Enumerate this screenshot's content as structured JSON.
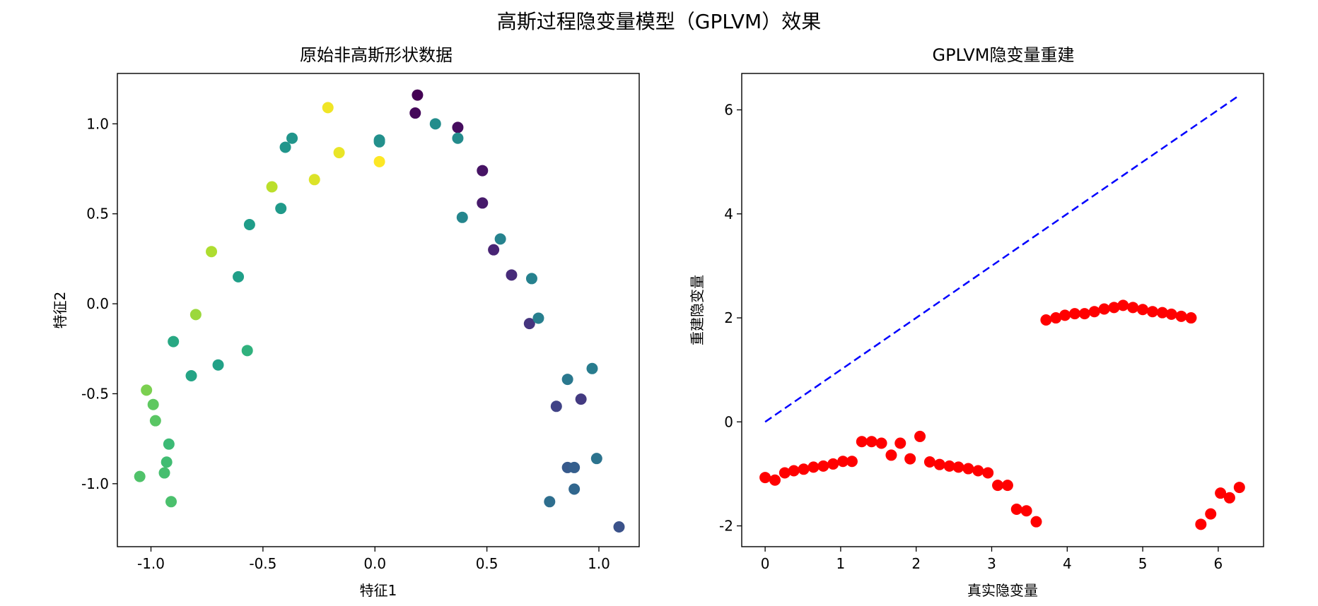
{
  "figure": {
    "suptitle": "高斯过程隐变量模型（GPLVM）效果"
  },
  "chart_data": [
    {
      "type": "scatter",
      "title": "原始非高斯形状数据",
      "xlabel": "特征1",
      "ylabel": "特征2",
      "xlim": [
        -1.15,
        1.18
      ],
      "ylim": [
        -1.35,
        1.28
      ],
      "xticks": [
        -1.0,
        -0.5,
        0.0,
        0.5,
        1.0
      ],
      "xtick_labels": [
        "-1.0",
        "-0.5",
        "0.0",
        "0.5",
        "1.0"
      ],
      "yticks": [
        -1.0,
        -0.5,
        0.0,
        0.5,
        1.0
      ],
      "ytick_labels": [
        "-1.0",
        "-0.5",
        "0.0",
        "0.5",
        "1.0"
      ],
      "colormap": "viridis",
      "points": [
        {
          "x": 0.19,
          "y": 1.16,
          "c": 0.0
        },
        {
          "x": 0.18,
          "y": 1.06,
          "c": 0.02
        },
        {
          "x": 0.37,
          "y": 0.98,
          "c": 0.03
        },
        {
          "x": 0.48,
          "y": 0.74,
          "c": 0.05
        },
        {
          "x": 0.48,
          "y": 0.56,
          "c": 0.07
        },
        {
          "x": 0.53,
          "y": 0.3,
          "c": 0.1
        },
        {
          "x": 0.61,
          "y": 0.16,
          "c": 0.12
        },
        {
          "x": 0.69,
          "y": -0.11,
          "c": 0.15
        },
        {
          "x": 0.92,
          "y": -0.53,
          "c": 0.17
        },
        {
          "x": 0.81,
          "y": -0.57,
          "c": 0.2
        },
        {
          "x": 1.09,
          "y": -1.24,
          "c": 0.25
        },
        {
          "x": 0.86,
          "y": -0.91,
          "c": 0.28
        },
        {
          "x": 0.89,
          "y": -0.91,
          "c": 0.3
        },
        {
          "x": 0.89,
          "y": -1.03,
          "c": 0.33
        },
        {
          "x": 0.78,
          "y": -1.1,
          "c": 0.36
        },
        {
          "x": 0.99,
          "y": -0.86,
          "c": 0.38
        },
        {
          "x": 0.86,
          "y": -0.42,
          "c": 0.4
        },
        {
          "x": 0.97,
          "y": -0.36,
          "c": 0.42
        },
        {
          "x": 0.73,
          "y": -0.08,
          "c": 0.43
        },
        {
          "x": 0.7,
          "y": 0.14,
          "c": 0.44
        },
        {
          "x": 0.56,
          "y": 0.36,
          "c": 0.45
        },
        {
          "x": 0.39,
          "y": 0.48,
          "c": 0.46
        },
        {
          "x": 0.37,
          "y": 0.92,
          "c": 0.48
        },
        {
          "x": 0.27,
          "y": 1.0,
          "c": 0.49
        },
        {
          "x": 0.02,
          "y": 0.91,
          "c": 0.5
        },
        {
          "x": 0.02,
          "y": 0.9,
          "c": 0.5
        },
        {
          "x": -0.37,
          "y": 0.92,
          "c": 0.52
        },
        {
          "x": -0.4,
          "y": 0.87,
          "c": 0.52
        },
        {
          "x": -0.42,
          "y": 0.53,
          "c": 0.54
        },
        {
          "x": -0.56,
          "y": 0.44,
          "c": 0.55
        },
        {
          "x": -0.61,
          "y": 0.15,
          "c": 0.56
        },
        {
          "x": -0.7,
          "y": -0.34,
          "c": 0.57
        },
        {
          "x": -0.82,
          "y": -0.4,
          "c": 0.58
        },
        {
          "x": -0.9,
          "y": -0.21,
          "c": 0.6
        },
        {
          "x": -0.57,
          "y": -0.26,
          "c": 0.64
        },
        {
          "x": -0.92,
          "y": -0.78,
          "c": 0.68
        },
        {
          "x": -0.93,
          "y": -0.88,
          "c": 0.69
        },
        {
          "x": -0.94,
          "y": -0.94,
          "c": 0.7
        },
        {
          "x": -0.91,
          "y": -1.1,
          "c": 0.71
        },
        {
          "x": -1.05,
          "y": -0.96,
          "c": 0.72
        },
        {
          "x": -0.98,
          "y": -0.65,
          "c": 0.74
        },
        {
          "x": -0.99,
          "y": -0.56,
          "c": 0.75
        },
        {
          "x": -1.02,
          "y": -0.48,
          "c": 0.8
        },
        {
          "x": -0.8,
          "y": -0.06,
          "c": 0.85
        },
        {
          "x": -0.73,
          "y": 0.29,
          "c": 0.88
        },
        {
          "x": -0.46,
          "y": 0.65,
          "c": 0.9
        },
        {
          "x": -0.27,
          "y": 0.69,
          "c": 0.95
        },
        {
          "x": -0.16,
          "y": 0.84,
          "c": 0.97
        },
        {
          "x": -0.21,
          "y": 1.09,
          "c": 0.98
        },
        {
          "x": 0.02,
          "y": 0.79,
          "c": 1.0
        }
      ]
    },
    {
      "type": "scatter",
      "title": "GPLVM隐变量重建",
      "xlabel": "真实隐变量",
      "ylabel": "重建隐变量",
      "xlim": [
        -0.31,
        6.6
      ],
      "ylim": [
        -2.4,
        6.7
      ],
      "xticks": [
        0,
        1,
        2,
        3,
        4,
        5,
        6
      ],
      "xtick_labels": [
        "0",
        "1",
        "2",
        "3",
        "4",
        "5",
        "6"
      ],
      "yticks": [
        -2,
        0,
        2,
        4,
        6
      ],
      "ytick_labels": [
        "-2",
        "0",
        "2",
        "4",
        "6"
      ],
      "marker_color": "#ff0000",
      "line_color": "#0000ff",
      "reference_line": {
        "x": [
          0,
          6.28
        ],
        "y": [
          0,
          6.28
        ],
        "style": "dashed"
      },
      "points": [
        {
          "x": 0.0,
          "y": -1.07
        },
        {
          "x": 0.13,
          "y": -1.12
        },
        {
          "x": 0.26,
          "y": -0.98
        },
        {
          "x": 0.38,
          "y": -0.94
        },
        {
          "x": 0.51,
          "y": -0.91
        },
        {
          "x": 0.64,
          "y": -0.87
        },
        {
          "x": 0.77,
          "y": -0.85
        },
        {
          "x": 0.9,
          "y": -0.81
        },
        {
          "x": 1.03,
          "y": -0.76
        },
        {
          "x": 1.15,
          "y": -0.76
        },
        {
          "x": 1.28,
          "y": -0.38
        },
        {
          "x": 1.41,
          "y": -0.38
        },
        {
          "x": 1.54,
          "y": -0.41
        },
        {
          "x": 1.67,
          "y": -0.64
        },
        {
          "x": 1.79,
          "y": -0.41
        },
        {
          "x": 1.92,
          "y": -0.71
        },
        {
          "x": 2.05,
          "y": -0.28
        },
        {
          "x": 2.18,
          "y": -0.77
        },
        {
          "x": 2.31,
          "y": -0.82
        },
        {
          "x": 2.44,
          "y": -0.85
        },
        {
          "x": 2.56,
          "y": -0.87
        },
        {
          "x": 2.69,
          "y": -0.9
        },
        {
          "x": 2.82,
          "y": -0.94
        },
        {
          "x": 2.95,
          "y": -0.98
        },
        {
          "x": 3.08,
          "y": -1.22
        },
        {
          "x": 3.21,
          "y": -1.22
        },
        {
          "x": 3.33,
          "y": -1.68
        },
        {
          "x": 3.46,
          "y": -1.71
        },
        {
          "x": 3.59,
          "y": -1.92
        },
        {
          "x": 3.72,
          "y": 1.96
        },
        {
          "x": 3.85,
          "y": 2.0
        },
        {
          "x": 3.97,
          "y": 2.05
        },
        {
          "x": 4.1,
          "y": 2.08
        },
        {
          "x": 4.23,
          "y": 2.08
        },
        {
          "x": 4.36,
          "y": 2.12
        },
        {
          "x": 4.49,
          "y": 2.17
        },
        {
          "x": 4.62,
          "y": 2.2
        },
        {
          "x": 4.74,
          "y": 2.24
        },
        {
          "x": 4.87,
          "y": 2.2
        },
        {
          "x": 5.0,
          "y": 2.16
        },
        {
          "x": 5.13,
          "y": 2.12
        },
        {
          "x": 5.26,
          "y": 2.1
        },
        {
          "x": 5.38,
          "y": 2.07
        },
        {
          "x": 5.51,
          "y": 2.03
        },
        {
          "x": 5.64,
          "y": 2.0
        },
        {
          "x": 5.77,
          "y": -1.97
        },
        {
          "x": 5.9,
          "y": -1.77
        },
        {
          "x": 6.03,
          "y": -1.37
        },
        {
          "x": 6.15,
          "y": -1.46
        },
        {
          "x": 6.28,
          "y": -1.26
        }
      ]
    }
  ]
}
